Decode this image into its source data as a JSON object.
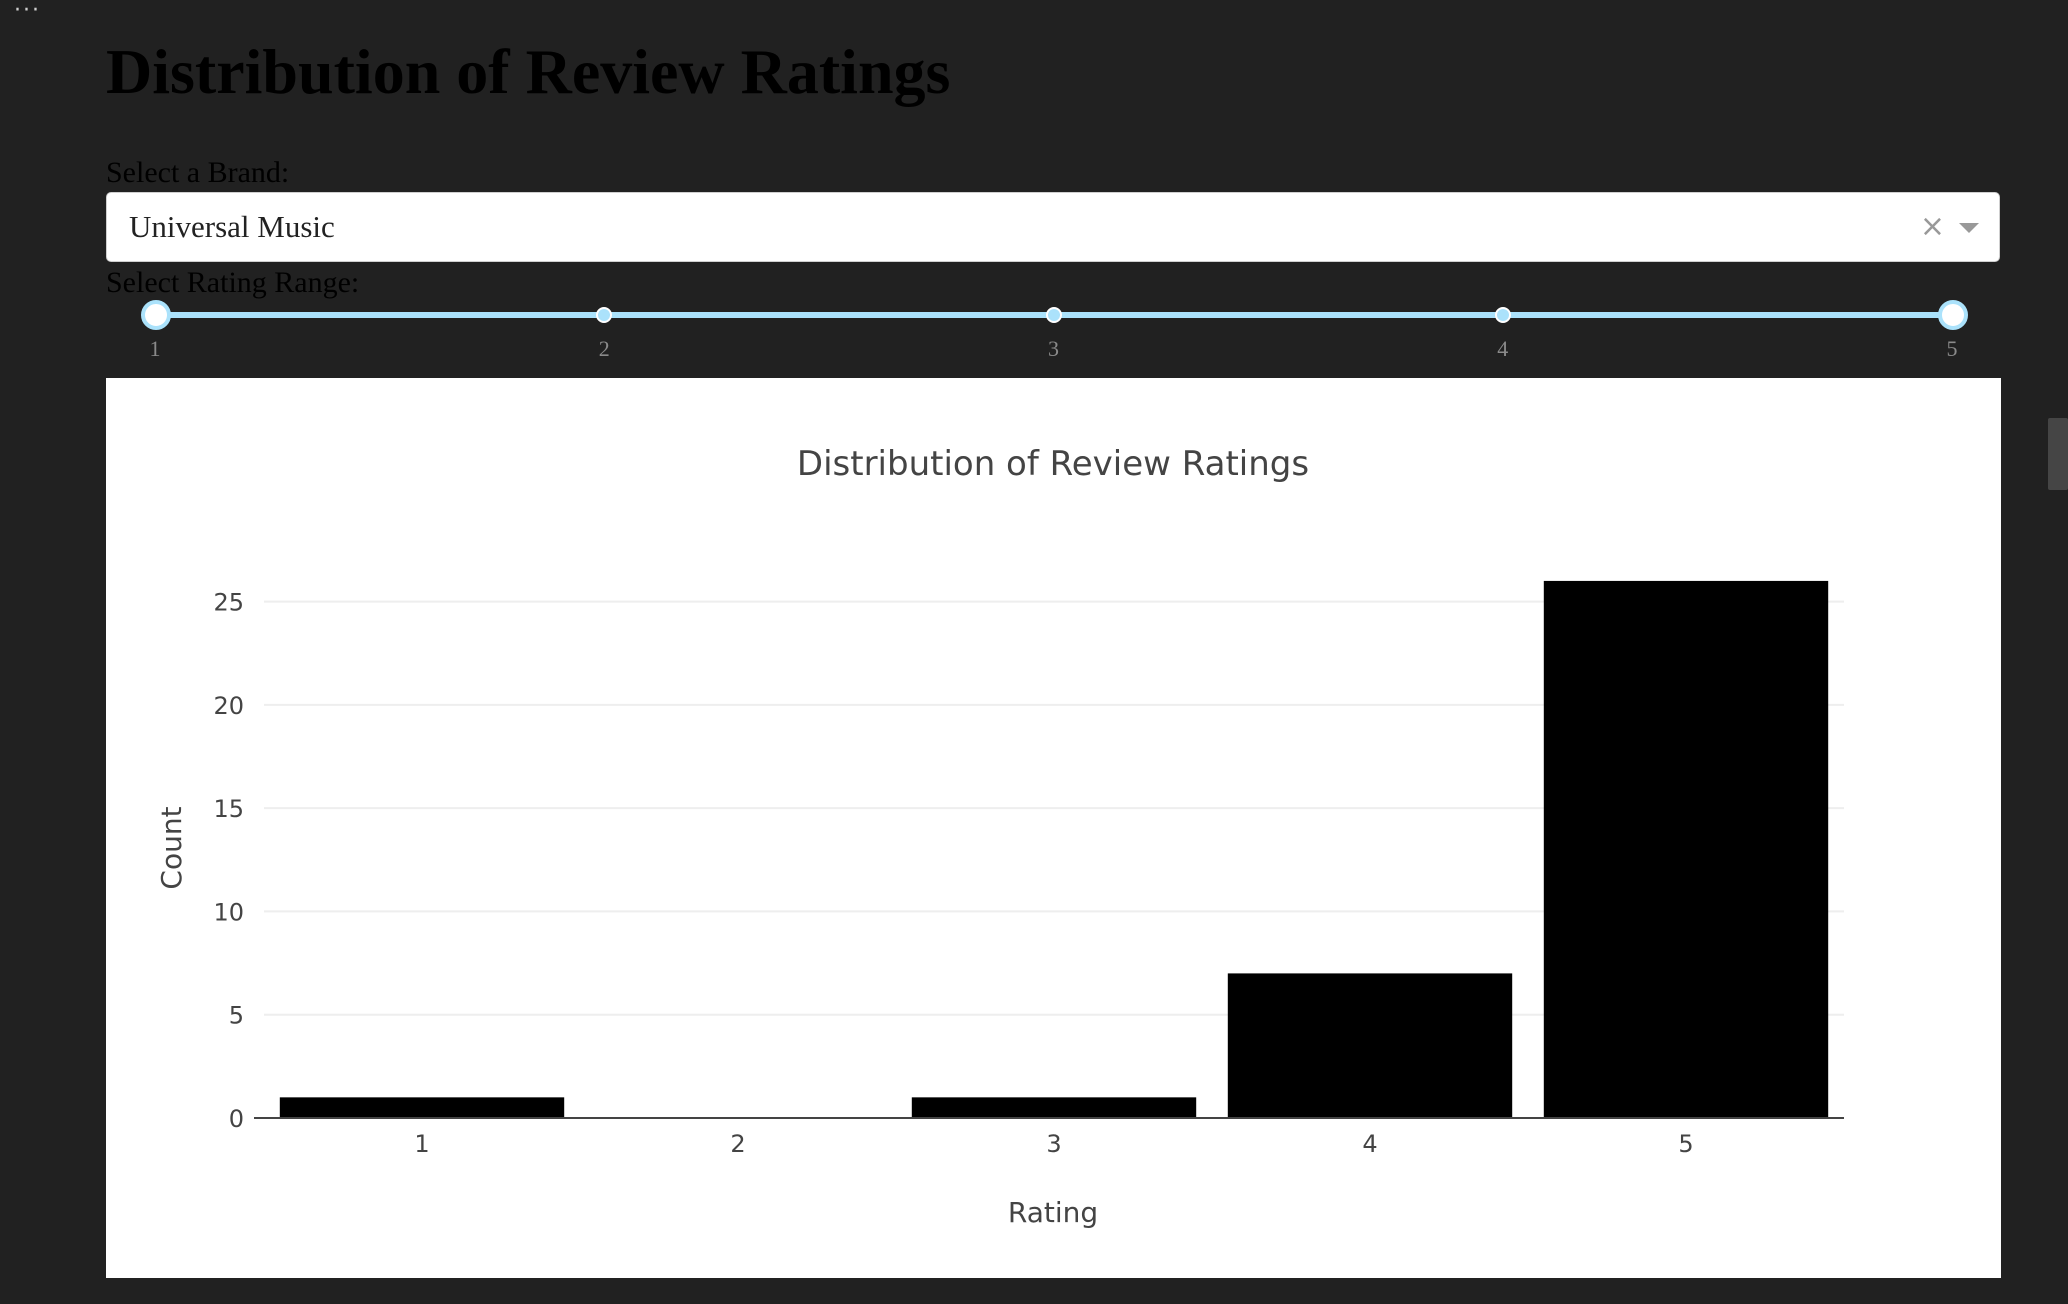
{
  "window": {
    "menu_icon": "more-horizontal-icon"
  },
  "header": {
    "title": "Distribution of Review Ratings"
  },
  "brand_select": {
    "label": "Select a Brand:",
    "value": "Universal Music",
    "clear_glyph": "×"
  },
  "rating_range": {
    "label": "Select Rating Range:",
    "marks": [
      "1",
      "2",
      "3",
      "4",
      "5"
    ],
    "min": 1,
    "max": 5,
    "selected": [
      1,
      5
    ]
  },
  "colors": {
    "page_background": "#212121",
    "bar_color": "#000000",
    "slider_color": "#abe2fb",
    "grid_color": "#eeeeee"
  },
  "chart_data": {
    "type": "bar",
    "title": "Distribution of Review Ratings",
    "xlabel": "Rating",
    "ylabel": "Count",
    "categories": [
      "1",
      "2",
      "3",
      "4",
      "5"
    ],
    "values": [
      1,
      0,
      1,
      7,
      26
    ],
    "ylim": [
      0,
      27.4
    ],
    "yticks": [
      0,
      5,
      10,
      15,
      20,
      25
    ],
    "grid": true,
    "legend": "none"
  }
}
